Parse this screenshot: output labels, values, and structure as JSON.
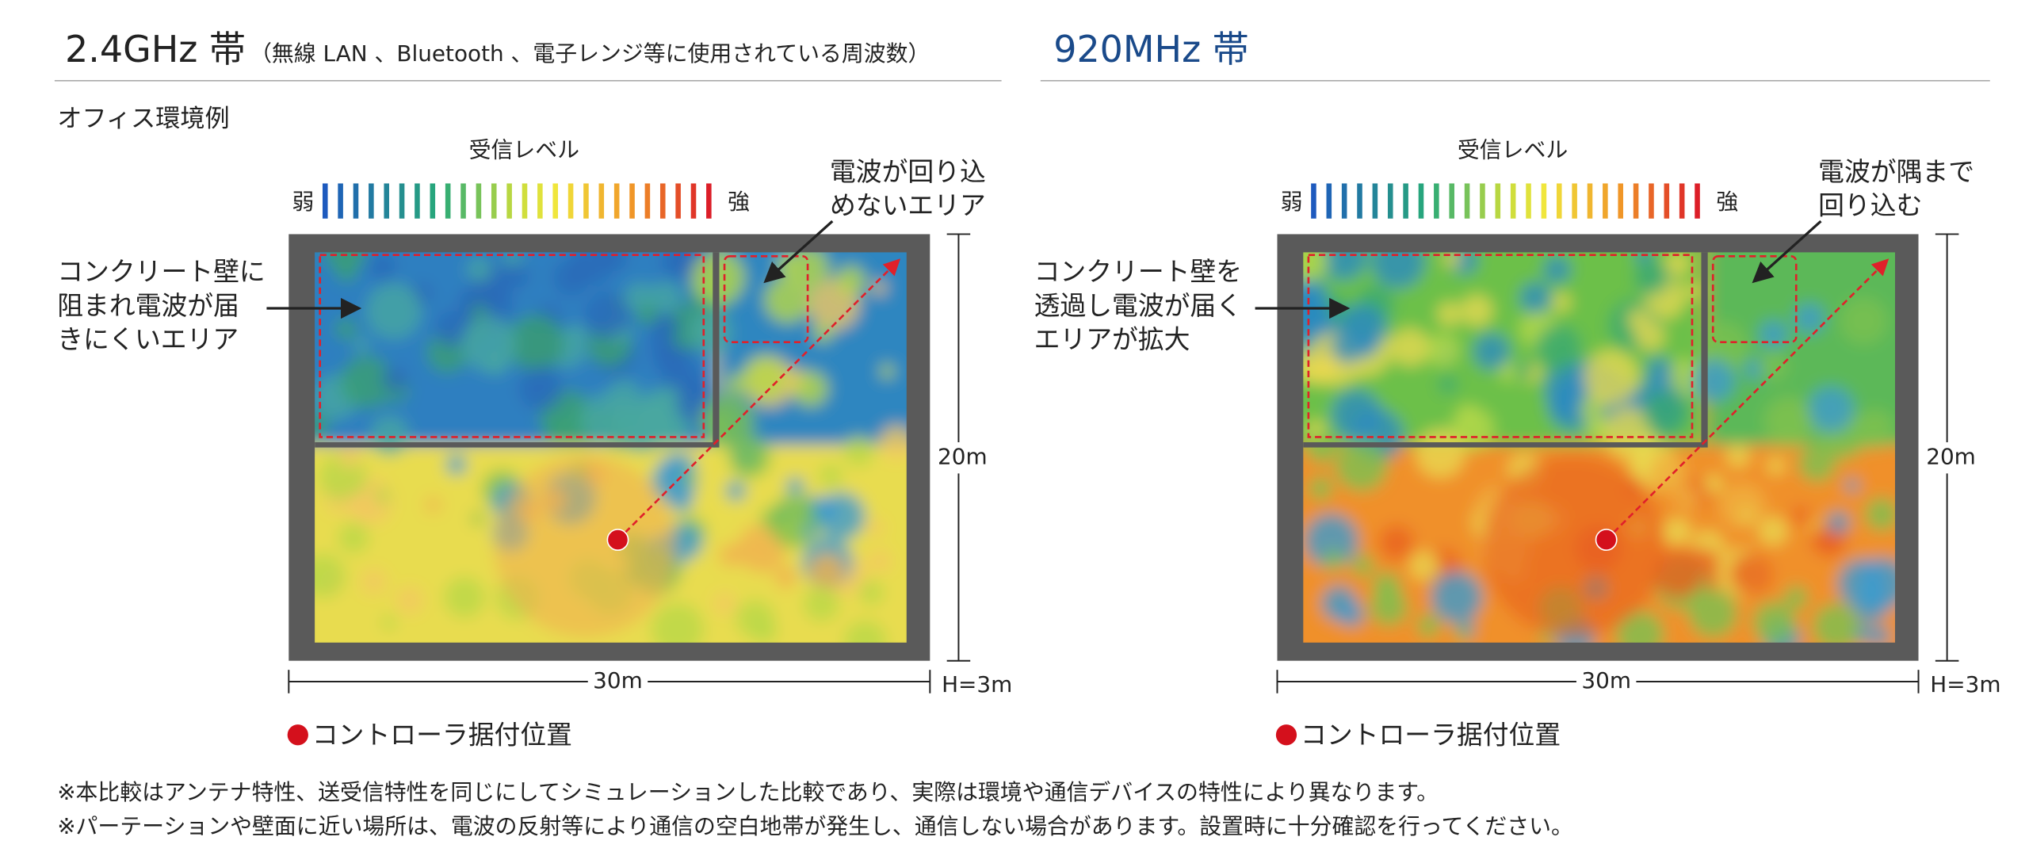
{
  "header": {
    "left_title": "2.4GHz 帯",
    "left_subtitle": "（無線 LAN 、Bluetooth 、電子レンジ等に使用されている周波数）",
    "right_title": "920MHz 帯"
  },
  "scene_label": "オフィス環境例",
  "panels": [
    {
      "legend_title": "受信レベル",
      "weak": "弱",
      "strong": "強",
      "callout_top": [
        "電波が回り込",
        "めないエリア"
      ],
      "callout_left": [
        "コンクリート壁に",
        "阻まれ電波が届",
        "きにくいエリア"
      ],
      "width": "30m",
      "height": "20m",
      "ceiling": "H=3m",
      "controller": "コントローラ据付位置"
    },
    {
      "legend_title": "受信レベル",
      "weak": "弱",
      "strong": "強",
      "callout_top": [
        "電波が隅まで",
        "回り込む"
      ],
      "callout_left": [
        "コンクリート壁を",
        "透過し電波が届く",
        "エリアが拡大"
      ],
      "width": "30m",
      "height": "20m",
      "ceiling": "H=3m",
      "controller": "コントローラ据付位置"
    }
  ],
  "notes": [
    "※本比較はアンテナ特性、送受信特性を同じにしてシミュレーションした比較であり、実際は環境や通信デバイスの特性により異なります。",
    "※パーテーションや壁面に近い場所は、電波の反射等により通信の空白地帯が発生し、通信しない場合があります。設置時に十分確認を行ってください。"
  ]
}
